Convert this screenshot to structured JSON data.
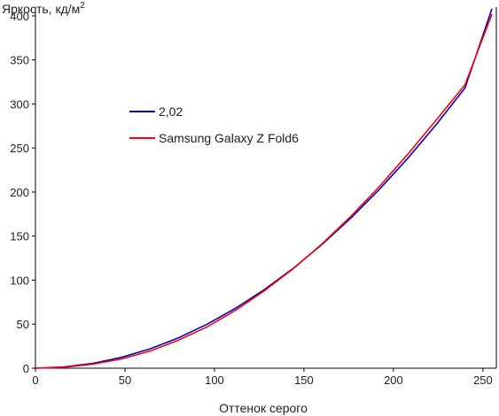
{
  "chart_data": {
    "type": "line",
    "title": "",
    "ylabel": "Яркость, кд/м",
    "ylabel_superscript": "2",
    "xlabel": "Оттенок серого",
    "xlim": [
      0,
      255
    ],
    "ylim": [
      0,
      410
    ],
    "x_ticks": [
      0,
      50,
      100,
      150,
      200,
      250
    ],
    "y_ticks": [
      0,
      50,
      100,
      150,
      200,
      250,
      300,
      350,
      400
    ],
    "grid": false,
    "legend_position": "upper-left inside plot",
    "series": [
      {
        "name": "2,02",
        "color": "#0000cc",
        "x": [
          0,
          16,
          32,
          48,
          64,
          80,
          96,
          112,
          128,
          144,
          160,
          176,
          192,
          208,
          224,
          240,
          255
        ],
        "y": [
          0,
          1.5,
          5.5,
          12.3,
          22,
          34.6,
          50,
          68.3,
          89.4,
          113.4,
          140.3,
          170.1,
          202.8,
          238.4,
          276.9,
          318.4,
          408
        ]
      },
      {
        "name": "Samsung Galaxy Z Fold6",
        "color": "#ff0000",
        "x": [
          0,
          16,
          32,
          48,
          64,
          80,
          96,
          112,
          128,
          144,
          160,
          176,
          192,
          208,
          224,
          240,
          255
        ],
        "y": [
          0,
          1,
          4.5,
          10.5,
          19.5,
          32,
          47,
          66,
          88,
          113,
          141,
          172,
          206,
          243,
          282,
          322,
          402
        ]
      }
    ]
  }
}
